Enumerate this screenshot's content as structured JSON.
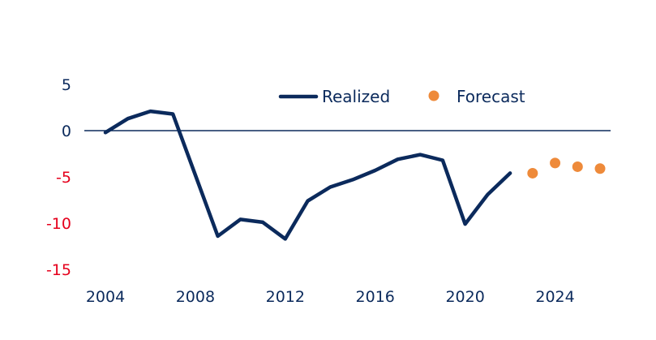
{
  "chart_data": {
    "type": "line",
    "title": "",
    "xlabel": "",
    "ylabel": "",
    "xlim": [
      2004,
      2026.5
    ],
    "ylim": [
      -15,
      5
    ],
    "x_ticks": [
      "2004",
      "2008",
      "2012",
      "2016",
      "2020",
      "2024"
    ],
    "y_ticks": [
      "5",
      "0",
      "-5",
      "-10",
      "-15"
    ],
    "grid": false,
    "legend_position": "top",
    "colors": {
      "realized": "#0b2a5c",
      "forecast": "#ee8a3a",
      "positive_tick": "#0b2a5c",
      "negative_tick": "#e5001c",
      "zero_line": "#0b2a5c"
    },
    "series": [
      {
        "name": "Realized",
        "style": "line",
        "x": [
          2004,
          2005,
          2006,
          2007,
          2008,
          2009,
          2010,
          2011,
          2012,
          2013,
          2014,
          2015,
          2016,
          2017,
          2018,
          2019,
          2020,
          2021,
          2022
        ],
        "y": [
          -0.2,
          1.3,
          2.1,
          1.8,
          -4.8,
          -11.4,
          -9.6,
          -9.9,
          -11.7,
          -7.6,
          -6.1,
          -5.3,
          -4.3,
          -3.1,
          -2.6,
          -3.2,
          -10.1,
          -6.9,
          -4.6
        ]
      },
      {
        "name": "Forecast",
        "style": "markers",
        "x": [
          2023,
          2024,
          2025,
          2026
        ],
        "y": [
          -4.6,
          -3.5,
          -3.9,
          -4.1
        ]
      }
    ]
  }
}
